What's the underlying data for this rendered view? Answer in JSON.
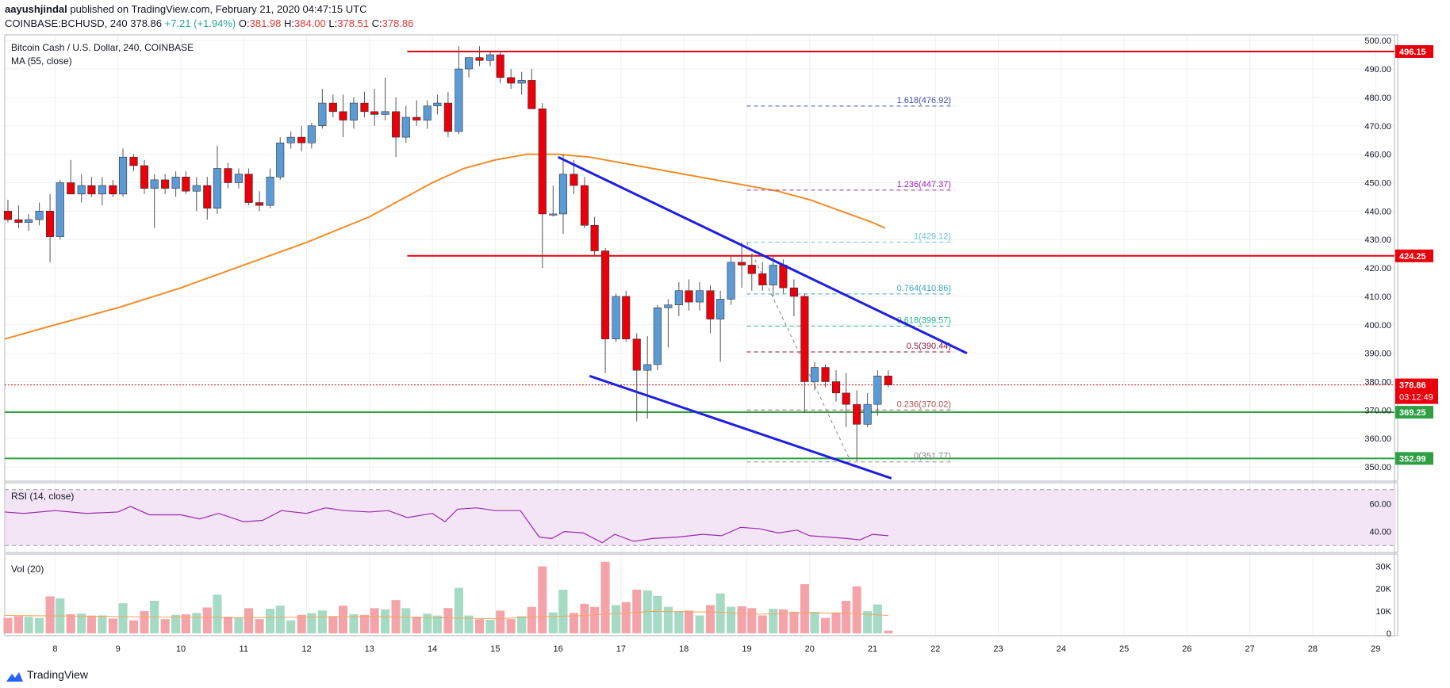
{
  "header": {
    "author": "aayushjindal",
    "published_text": "published on TradingView.com, February 21, 2020 04:47:15 UTC",
    "symbol_line": "COINBASE:BCHUSD, 240",
    "last_price": "378.86",
    "change": "+7.21 (+1.94%)",
    "open_label": "O:",
    "open": "381.98",
    "high_label": "H:",
    "high": "384.00",
    "low_label": "L:",
    "low": "378.51",
    "close_label": "C:",
    "close": "378.86"
  },
  "legend": {
    "title": "Bitcoin Cash / U.S. Dollar, 240, COINBASE",
    "ma": "MA (55, close)",
    "rsi": "RSI (14, close)",
    "vol": "Vol (20)"
  },
  "footer": {
    "brand": "TradingView"
  },
  "colors": {
    "bull": "#5b9bd5",
    "bear": "#e8000b",
    "ma": "#f28c28",
    "resistance": "#e8000b",
    "support": "#2ea043",
    "channel": "#1f1fe0",
    "rsi_line": "#9c27b0",
    "rsi_bg": "#f3e5f5",
    "vol_up": "#a5dbc4",
    "vol_down": "#f4a4a8",
    "vol_ma": "#f7a35c",
    "current_price": "#e8000b"
  },
  "chart_data": [
    {
      "type": "candlestick",
      "title": "Bitcoin Cash / U.S. Dollar, 240, COINBASE",
      "x_axis_ticks": [
        "8",
        "9",
        "10",
        "11",
        "12",
        "13",
        "14",
        "15",
        "16",
        "17",
        "18",
        "19",
        "20",
        "21",
        "22",
        "23",
        "24",
        "25",
        "26",
        "27",
        "28",
        "29"
      ],
      "y_ticks": [
        350,
        360,
        370,
        380,
        390,
        400,
        410,
        420,
        430,
        440,
        450,
        460,
        470,
        480,
        490,
        500
      ],
      "ylim": [
        345,
        502
      ],
      "xlim": [
        7.2,
        29.3
      ],
      "candles": [
        {
          "t": 7.25,
          "o": 440,
          "h": 444,
          "l": 436,
          "c": 437
        },
        {
          "t": 7.42,
          "o": 437,
          "h": 442,
          "l": 434,
          "c": 436
        },
        {
          "t": 7.58,
          "o": 436,
          "h": 439,
          "l": 433,
          "c": 437
        },
        {
          "t": 7.75,
          "o": 437,
          "h": 443,
          "l": 435,
          "c": 440
        },
        {
          "t": 7.92,
          "o": 440,
          "h": 446,
          "l": 422,
          "c": 431
        },
        {
          "t": 8.08,
          "o": 431,
          "h": 451,
          "l": 430,
          "c": 450
        },
        {
          "t": 8.25,
          "o": 450,
          "h": 458,
          "l": 447,
          "c": 446
        },
        {
          "t": 8.42,
          "o": 446,
          "h": 453,
          "l": 443,
          "c": 449
        },
        {
          "t": 8.58,
          "o": 449,
          "h": 452,
          "l": 445,
          "c": 446
        },
        {
          "t": 8.75,
          "o": 446,
          "h": 452,
          "l": 442,
          "c": 449
        },
        {
          "t": 8.92,
          "o": 449,
          "h": 451,
          "l": 445,
          "c": 446
        },
        {
          "t": 9.08,
          "o": 446,
          "h": 462,
          "l": 445,
          "c": 459
        },
        {
          "t": 9.25,
          "o": 459,
          "h": 460,
          "l": 454,
          "c": 456
        },
        {
          "t": 9.42,
          "o": 456,
          "h": 458,
          "l": 446,
          "c": 448
        },
        {
          "t": 9.58,
          "o": 448,
          "h": 453,
          "l": 434,
          "c": 451
        },
        {
          "t": 9.75,
          "o": 451,
          "h": 453,
          "l": 446,
          "c": 448
        },
        {
          "t": 9.92,
          "o": 448,
          "h": 454,
          "l": 445,
          "c": 452
        },
        {
          "t": 10.08,
          "o": 452,
          "h": 454,
          "l": 446,
          "c": 447
        },
        {
          "t": 10.25,
          "o": 447,
          "h": 452,
          "l": 440,
          "c": 449
        },
        {
          "t": 10.42,
          "o": 449,
          "h": 452,
          "l": 437,
          "c": 441
        },
        {
          "t": 10.58,
          "o": 441,
          "h": 463,
          "l": 439,
          "c": 455
        },
        {
          "t": 10.75,
          "o": 455,
          "h": 457,
          "l": 448,
          "c": 450
        },
        {
          "t": 10.92,
          "o": 450,
          "h": 455,
          "l": 448,
          "c": 453
        },
        {
          "t": 11.08,
          "o": 453,
          "h": 455,
          "l": 442,
          "c": 443
        },
        {
          "t": 11.25,
          "o": 443,
          "h": 447,
          "l": 440,
          "c": 442
        },
        {
          "t": 11.42,
          "o": 442,
          "h": 455,
          "l": 441,
          "c": 452
        },
        {
          "t": 11.58,
          "o": 452,
          "h": 466,
          "l": 451,
          "c": 464
        },
        {
          "t": 11.75,
          "o": 464,
          "h": 468,
          "l": 462,
          "c": 466
        },
        {
          "t": 11.92,
          "o": 466,
          "h": 470,
          "l": 461,
          "c": 464
        },
        {
          "t": 12.08,
          "o": 464,
          "h": 471,
          "l": 462,
          "c": 470
        },
        {
          "t": 12.25,
          "o": 470,
          "h": 483,
          "l": 469,
          "c": 478
        },
        {
          "t": 12.42,
          "o": 478,
          "h": 481,
          "l": 473,
          "c": 475
        },
        {
          "t": 12.58,
          "o": 475,
          "h": 481,
          "l": 466,
          "c": 472
        },
        {
          "t": 12.75,
          "o": 472,
          "h": 480,
          "l": 469,
          "c": 478
        },
        {
          "t": 12.92,
          "o": 478,
          "h": 482,
          "l": 473,
          "c": 475
        },
        {
          "t": 13.08,
          "o": 475,
          "h": 483,
          "l": 470,
          "c": 474
        },
        {
          "t": 13.25,
          "o": 474,
          "h": 487,
          "l": 472,
          "c": 475
        },
        {
          "t": 13.42,
          "o": 475,
          "h": 480,
          "l": 459,
          "c": 466
        },
        {
          "t": 13.58,
          "o": 466,
          "h": 477,
          "l": 464,
          "c": 473
        },
        {
          "t": 13.75,
          "o": 473,
          "h": 479,
          "l": 470,
          "c": 472
        },
        {
          "t": 13.92,
          "o": 472,
          "h": 479,
          "l": 469,
          "c": 477
        },
        {
          "t": 14.08,
          "o": 477,
          "h": 481,
          "l": 474,
          "c": 478
        },
        {
          "t": 14.25,
          "o": 478,
          "h": 482,
          "l": 466,
          "c": 468
        },
        {
          "t": 14.42,
          "o": 468,
          "h": 498,
          "l": 467,
          "c": 490
        },
        {
          "t": 14.58,
          "o": 490,
          "h": 494,
          "l": 487,
          "c": 494
        },
        {
          "t": 14.75,
          "o": 494,
          "h": 498,
          "l": 491,
          "c": 493
        },
        {
          "t": 14.92,
          "o": 493,
          "h": 496,
          "l": 491,
          "c": 495
        },
        {
          "t": 15.08,
          "o": 495,
          "h": 496,
          "l": 485,
          "c": 487
        },
        {
          "t": 15.25,
          "o": 487,
          "h": 490,
          "l": 483,
          "c": 485
        },
        {
          "t": 15.42,
          "o": 485,
          "h": 489,
          "l": 481,
          "c": 486
        },
        {
          "t": 15.58,
          "o": 486,
          "h": 490,
          "l": 476,
          "c": 476
        },
        {
          "t": 15.75,
          "o": 476,
          "h": 478,
          "l": 420,
          "c": 439
        },
        {
          "t": 15.92,
          "o": 439,
          "h": 449,
          "l": 438,
          "c": 439
        },
        {
          "t": 16.08,
          "o": 439,
          "h": 460,
          "l": 432,
          "c": 453
        },
        {
          "t": 16.25,
          "o": 453,
          "h": 458,
          "l": 446,
          "c": 449
        },
        {
          "t": 16.42,
          "o": 449,
          "h": 452,
          "l": 434,
          "c": 435
        },
        {
          "t": 16.58,
          "o": 435,
          "h": 438,
          "l": 424,
          "c": 426
        },
        {
          "t": 16.75,
          "o": 426,
          "h": 427,
          "l": 383,
          "c": 395
        },
        {
          "t": 16.92,
          "o": 395,
          "h": 411,
          "l": 394,
          "c": 410
        },
        {
          "t": 17.08,
          "o": 410,
          "h": 412,
          "l": 394,
          "c": 395
        },
        {
          "t": 17.25,
          "o": 395,
          "h": 397,
          "l": 366,
          "c": 384
        },
        {
          "t": 17.42,
          "o": 384,
          "h": 396,
          "l": 367,
          "c": 386
        },
        {
          "t": 17.58,
          "o": 386,
          "h": 407,
          "l": 384,
          "c": 406
        },
        {
          "t": 17.75,
          "o": 406,
          "h": 409,
          "l": 392,
          "c": 407
        },
        {
          "t": 17.92,
          "o": 407,
          "h": 415,
          "l": 403,
          "c": 412
        },
        {
          "t": 18.08,
          "o": 412,
          "h": 416,
          "l": 405,
          "c": 408
        },
        {
          "t": 18.25,
          "o": 408,
          "h": 415,
          "l": 405,
          "c": 412
        },
        {
          "t": 18.42,
          "o": 412,
          "h": 414,
          "l": 397,
          "c": 402
        },
        {
          "t": 18.58,
          "o": 402,
          "h": 412,
          "l": 387,
          "c": 409
        },
        {
          "t": 18.75,
          "o": 409,
          "h": 424,
          "l": 407,
          "c": 422
        },
        {
          "t": 18.92,
          "o": 422,
          "h": 429,
          "l": 413,
          "c": 421
        },
        {
          "t": 19.08,
          "o": 421,
          "h": 425,
          "l": 412,
          "c": 418
        },
        {
          "t": 19.25,
          "o": 418,
          "h": 422,
          "l": 412,
          "c": 414
        },
        {
          "t": 19.42,
          "o": 414,
          "h": 424,
          "l": 410,
          "c": 421
        },
        {
          "t": 19.58,
          "o": 421,
          "h": 423,
          "l": 411,
          "c": 413
        },
        {
          "t": 19.75,
          "o": 413,
          "h": 416,
          "l": 403,
          "c": 410
        },
        {
          "t": 19.92,
          "o": 410,
          "h": 411,
          "l": 369,
          "c": 380
        },
        {
          "t": 20.08,
          "o": 380,
          "h": 387,
          "l": 377,
          "c": 385
        },
        {
          "t": 20.25,
          "o": 385,
          "h": 386,
          "l": 378,
          "c": 380
        },
        {
          "t": 20.42,
          "o": 380,
          "h": 384,
          "l": 373,
          "c": 376
        },
        {
          "t": 20.58,
          "o": 376,
          "h": 383,
          "l": 364,
          "c": 372
        },
        {
          "t": 20.75,
          "o": 372,
          "h": 377,
          "l": 352,
          "c": 365
        },
        {
          "t": 20.92,
          "o": 365,
          "h": 376,
          "l": 364,
          "c": 372
        },
        {
          "t": 21.08,
          "o": 372,
          "h": 384,
          "l": 368,
          "c": 382
        },
        {
          "t": 21.25,
          "o": 382,
          "h": 384,
          "l": 378,
          "c": 378.86
        }
      ],
      "ma55": [
        [
          7.2,
          395
        ],
        [
          8,
          400
        ],
        [
          9,
          406
        ],
        [
          10,
          413
        ],
        [
          11,
          421
        ],
        [
          12,
          429
        ],
        [
          13,
          438
        ],
        [
          14,
          450
        ],
        [
          14.5,
          455
        ],
        [
          15,
          458
        ],
        [
          15.5,
          460
        ],
        [
          16,
          460
        ],
        [
          16.5,
          459
        ],
        [
          17,
          457
        ],
        [
          17.5,
          455
        ],
        [
          18,
          453
        ],
        [
          18.5,
          451
        ],
        [
          19,
          449
        ],
        [
          19.5,
          447
        ],
        [
          20,
          444
        ],
        [
          20.5,
          440
        ],
        [
          21,
          436
        ],
        [
          21.2,
          434
        ]
      ],
      "horizontal_levels": [
        {
          "price": 496.15,
          "label": "496.15",
          "kind": "resistance",
          "x_start": 13.6
        },
        {
          "price": 424.25,
          "label": "424.25",
          "kind": "resistance",
          "x_start": 13.6
        },
        {
          "price": 369.25,
          "label": "369.25",
          "kind": "support",
          "x_start": 7.2
        },
        {
          "price": 352.99,
          "label": "352.99",
          "kind": "support",
          "x_start": 7.2
        }
      ],
      "current_price": {
        "price": 378.86,
        "label": "378.86",
        "countdown": "03:12:49"
      },
      "channel_lines": [
        {
          "from": [
            16,
            459
          ],
          "to": [
            22.5,
            390
          ]
        },
        {
          "from": [
            16.5,
            382
          ],
          "to": [
            21.3,
            346
          ]
        }
      ],
      "fib_levels": [
        {
          "ratio": "1.618",
          "value": "476.92",
          "price": 476.92,
          "color": "#3f51b5"
        },
        {
          "ratio": "1.236",
          "value": "447.37",
          "price": 447.37,
          "color": "#9c27b0"
        },
        {
          "ratio": "1",
          "value": "429.12",
          "price": 429.12,
          "color": "#67c3dd"
        },
        {
          "ratio": "0.764",
          "value": "410.86",
          "price": 410.86,
          "color": "#3ba3c7"
        },
        {
          "ratio": "0.618",
          "value": "399.57",
          "price": 399.57,
          "color": "#26b88a"
        },
        {
          "ratio": "0.5",
          "value": "390.44",
          "price": 390.44,
          "color": "#8b1a3e"
        },
        {
          "ratio": "0.236",
          "value": "370.02",
          "price": 370.02,
          "color": "#b35050"
        },
        {
          "ratio": "0",
          "value": "351.77",
          "price": 351.77,
          "color": "#888888"
        }
      ],
      "fib_x_range": [
        19,
        22.3
      ],
      "fib_trend": {
        "from": [
          19,
          429
        ],
        "to": [
          20.65,
          352
        ]
      }
    },
    {
      "type": "line",
      "title": "RSI (14, close)",
      "y_ticks": [
        40,
        60
      ],
      "ylim": [
        25,
        75
      ],
      "band": [
        30,
        70
      ],
      "points": [
        [
          7.2,
          54
        ],
        [
          7.5,
          53
        ],
        [
          8,
          55
        ],
        [
          8.5,
          53
        ],
        [
          9,
          54
        ],
        [
          9.2,
          58
        ],
        [
          9.5,
          52
        ],
        [
          10,
          52
        ],
        [
          10.3,
          49
        ],
        [
          10.6,
          53
        ],
        [
          11,
          47
        ],
        [
          11.3,
          48
        ],
        [
          11.6,
          55
        ],
        [
          12,
          53
        ],
        [
          12.3,
          57
        ],
        [
          12.6,
          55
        ],
        [
          13,
          54
        ],
        [
          13.3,
          55
        ],
        [
          13.6,
          50
        ],
        [
          14,
          53
        ],
        [
          14.2,
          47
        ],
        [
          14.4,
          56
        ],
        [
          14.7,
          57
        ],
        [
          15,
          55
        ],
        [
          15.4,
          55
        ],
        [
          15.7,
          36
        ],
        [
          15.9,
          35
        ],
        [
          16.1,
          40
        ],
        [
          16.4,
          39
        ],
        [
          16.7,
          32
        ],
        [
          16.9,
          38
        ],
        [
          17.2,
          33
        ],
        [
          17.5,
          35
        ],
        [
          17.9,
          36
        ],
        [
          18.3,
          38
        ],
        [
          18.6,
          37
        ],
        [
          18.9,
          43
        ],
        [
          19.2,
          42
        ],
        [
          19.5,
          39
        ],
        [
          19.8,
          41
        ],
        [
          20.0,
          37
        ],
        [
          20.3,
          36
        ],
        [
          20.6,
          35
        ],
        [
          20.8,
          34
        ],
        [
          21.0,
          38
        ],
        [
          21.25,
          37
        ]
      ]
    },
    {
      "type": "bar",
      "title": "Vol (20)",
      "y_ticks": [
        "0",
        "10K",
        "20K",
        "30K"
      ],
      "ylim": [
        0,
        33000
      ],
      "ma20": [
        [
          7.2,
          8000
        ],
        [
          9,
          7500
        ],
        [
          11,
          7000
        ],
        [
          13,
          7500
        ],
        [
          15,
          6500
        ],
        [
          15.8,
          7500
        ],
        [
          16.3,
          7800
        ],
        [
          16.9,
          8800
        ],
        [
          17.5,
          9800
        ],
        [
          18.5,
          9500
        ],
        [
          19.2,
          8600
        ],
        [
          20,
          9200
        ],
        [
          20.6,
          9000
        ],
        [
          21.25,
          8000
        ]
      ]
    }
  ]
}
